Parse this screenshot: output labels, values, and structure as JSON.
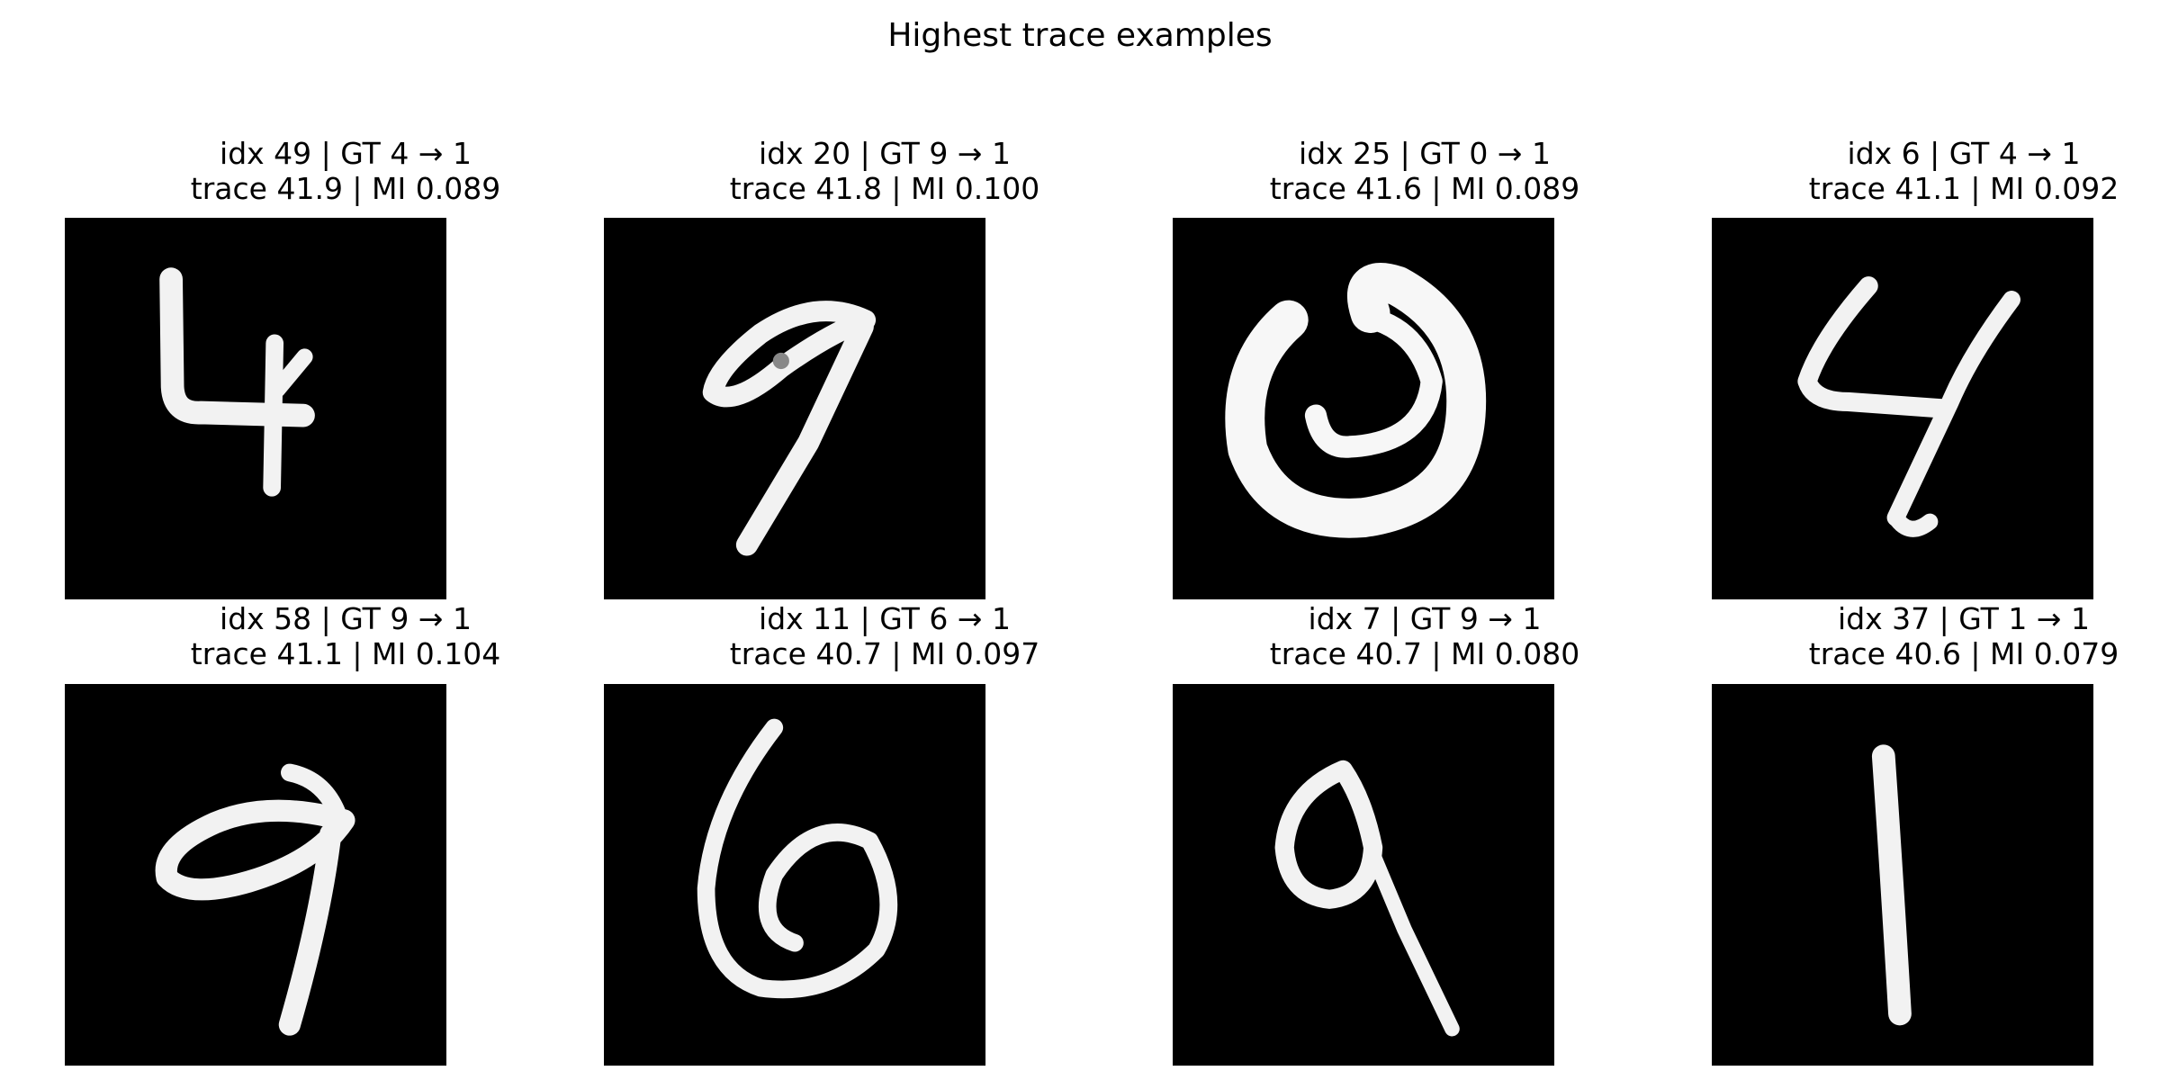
{
  "figure": {
    "title": "Highest trace examples"
  },
  "examples": [
    {
      "line1": "idx 49 | GT 4 → 1",
      "line2": "trace 41.9 | MI 0.089",
      "image": "handwritten-digit-4"
    },
    {
      "line1": "idx 20 | GT 9 → 1",
      "line2": "trace 41.8 | MI 0.100",
      "image": "handwritten-digit-9"
    },
    {
      "line1": "idx 25 | GT 0 → 1",
      "line2": "trace 41.6 | MI 0.089",
      "image": "handwritten-digit-0"
    },
    {
      "line1": "idx 6 | GT 4 → 1",
      "line2": "trace 41.1 | MI 0.092",
      "image": "handwritten-digit-4"
    },
    {
      "line1": "idx 58 | GT 9 → 1",
      "line2": "trace 41.1 | MI 0.104",
      "image": "handwritten-digit-9"
    },
    {
      "line1": "idx 11 | GT 6 → 1",
      "line2": "trace 40.7 | MI 0.097",
      "image": "handwritten-digit-6"
    },
    {
      "line1": "idx 7 | GT 9 → 1",
      "line2": "trace 40.7 | MI 0.080",
      "image": "handwritten-digit-9"
    },
    {
      "line1": "idx 37 | GT 1 → 1",
      "line2": "trace 40.6 | MI 0.079",
      "image": "handwritten-digit-1"
    }
  ]
}
